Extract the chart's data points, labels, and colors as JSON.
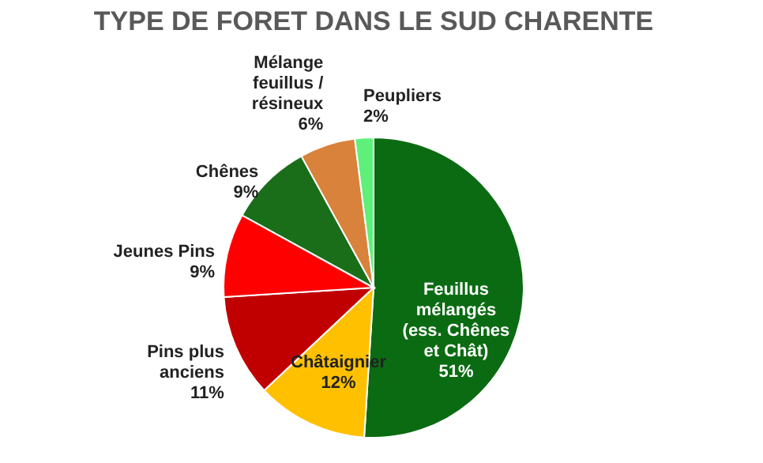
{
  "chart_data": {
    "type": "pie",
    "title": "TYPE DE FORET DANS LE SUD CHARENTE",
    "categories": [
      "Feuillus\nmélangés\n(ess. Chênes\net Chât)",
      "Châtaignier",
      "Pins plus\nanciens",
      "Jeunes Pins",
      "Chênes",
      "Mélange\nfeuillus /\nrésineux",
      "Peupliers"
    ],
    "values": [
      51,
      12,
      11,
      9,
      9,
      6,
      2
    ],
    "value_labels": [
      "51%",
      "12%",
      "11%",
      "9%",
      "9%",
      "6%",
      "2%"
    ],
    "colors": [
      "#0b6b12",
      "#ffc000",
      "#c00000",
      "#ff0000",
      "#1a6e1a",
      "#d9823b",
      "#5ef07a"
    ],
    "data_labels": true,
    "legend": false
  }
}
